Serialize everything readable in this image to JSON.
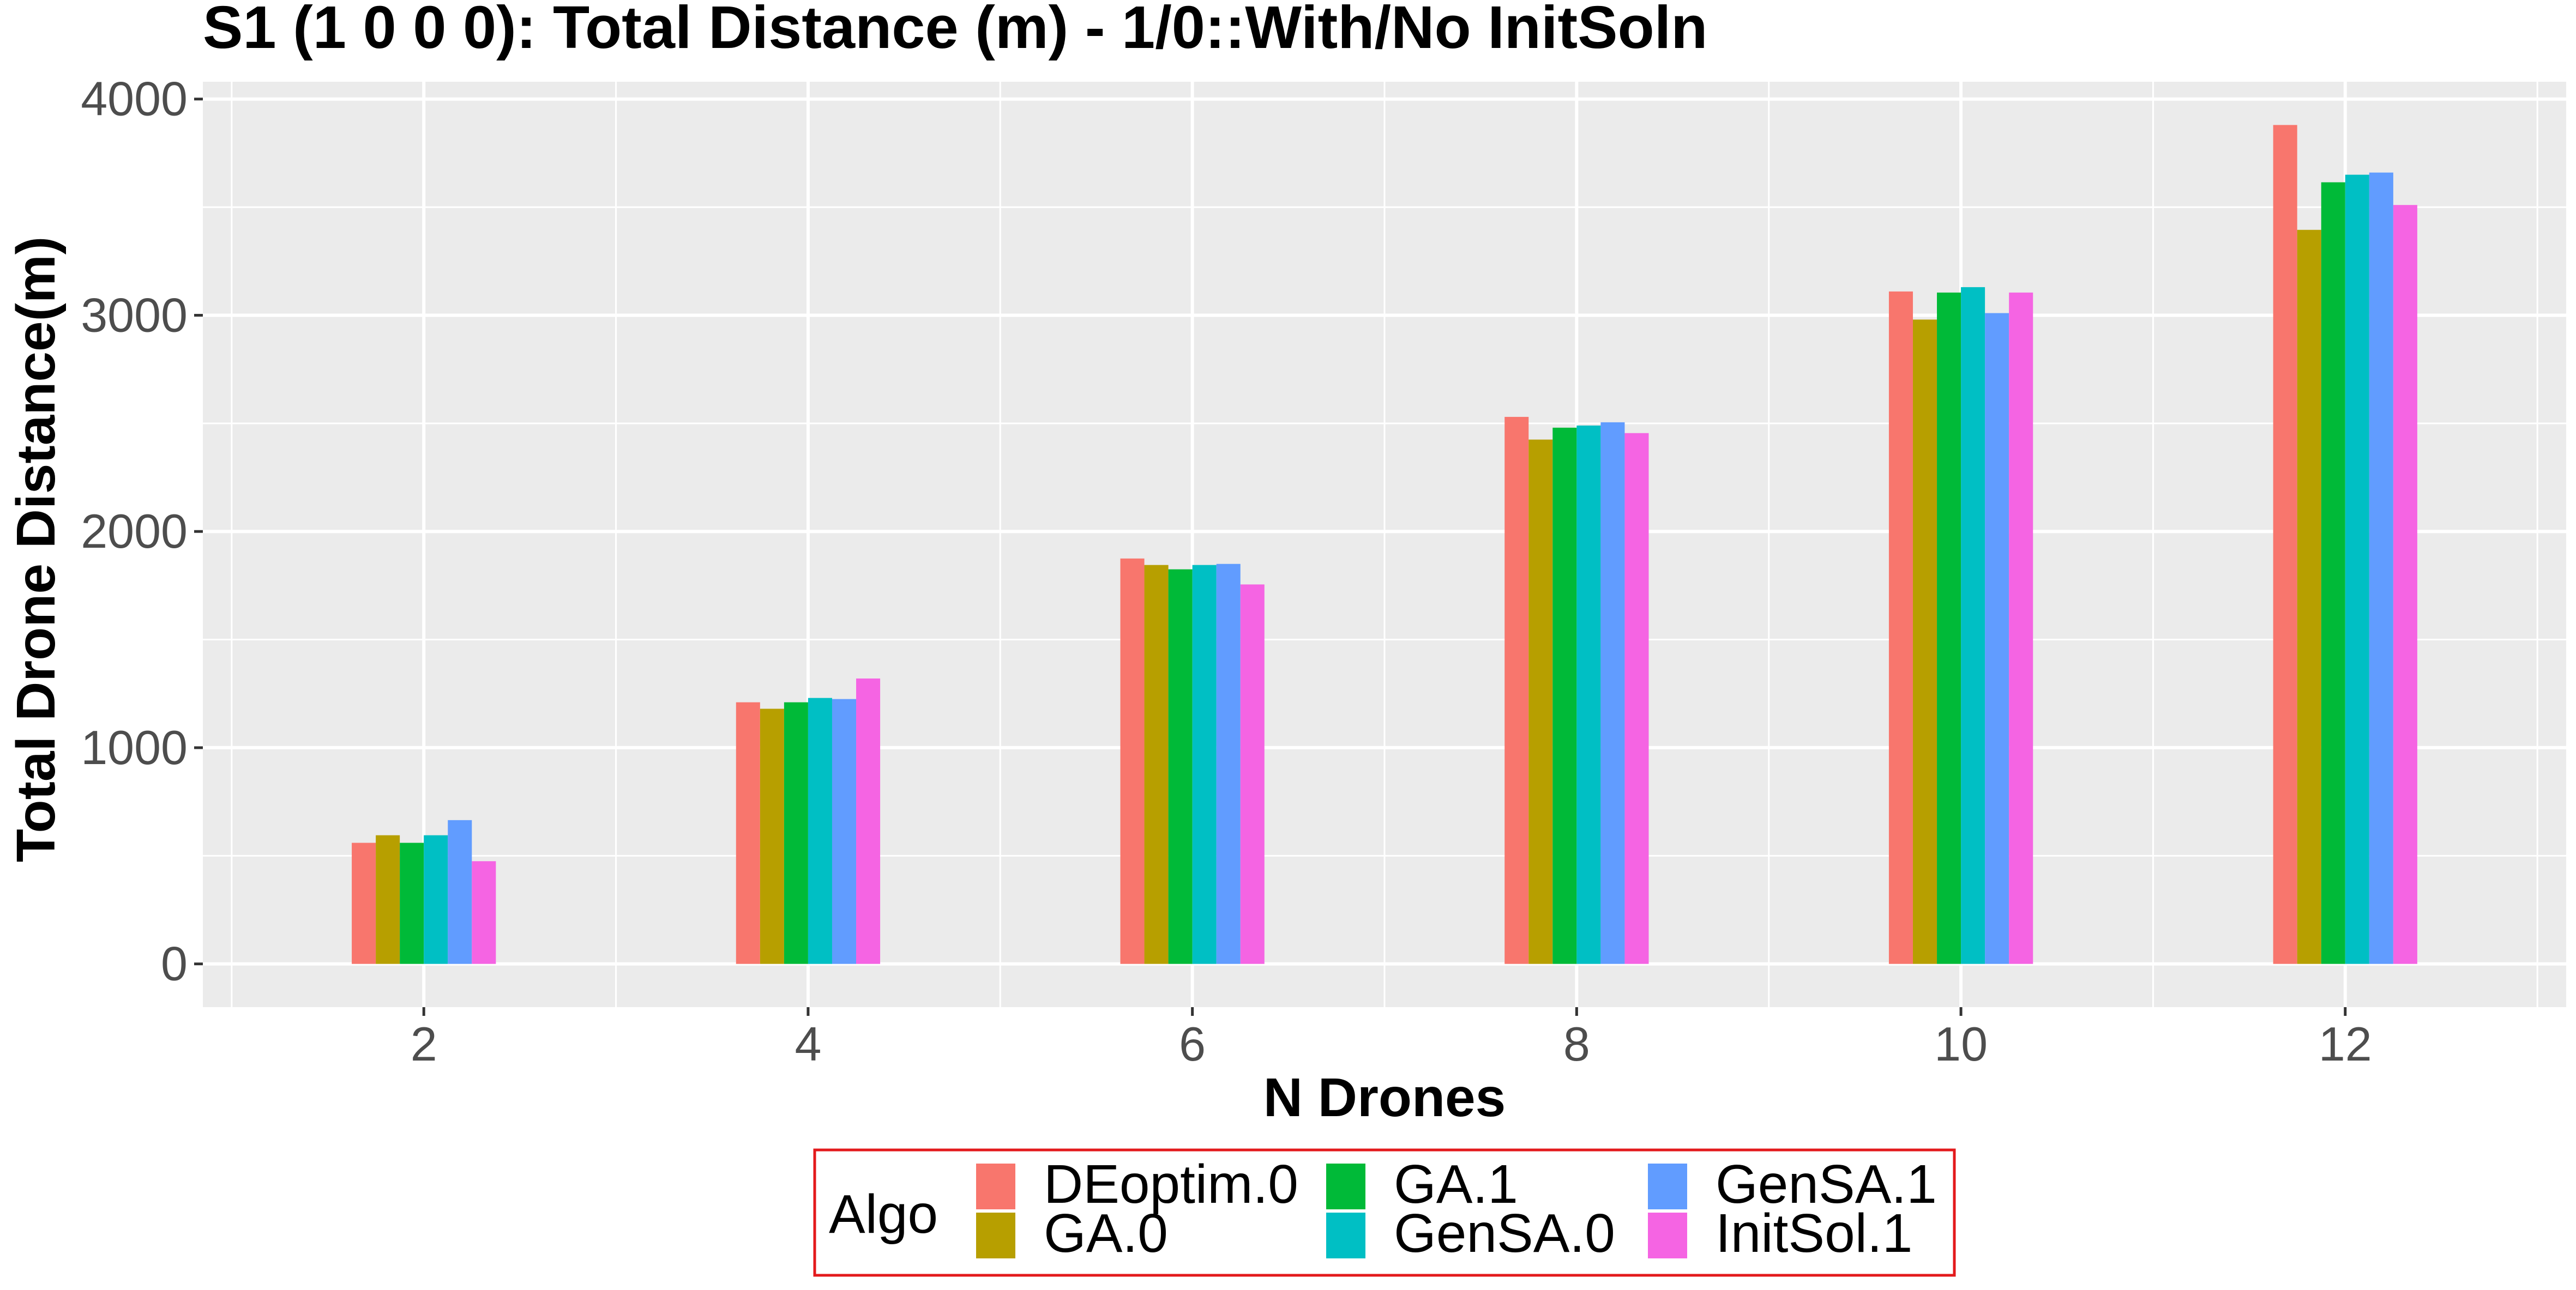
{
  "chart_data": {
    "type": "bar",
    "title": "S1 (1 0 0 0): Total Distance (m) - 1/0::With/No InitSoln",
    "xlabel": "N Drones",
    "ylabel": "Total Drone Distance(m)",
    "categories": [
      "2",
      "4",
      "6",
      "8",
      "10",
      "12"
    ],
    "x": [
      2,
      4,
      6,
      8,
      10,
      12
    ],
    "xlim": [
      0.85,
      13.15
    ],
    "ylim": [
      -200,
      4080
    ],
    "yticks": [
      "0",
      "1000",
      "2000",
      "3000",
      "4000"
    ],
    "xticks": [
      "2",
      "4",
      "6",
      "8",
      "10",
      "12"
    ],
    "grid": true,
    "legend": {
      "title": "Algo",
      "position": "bottom",
      "columns": 3
    },
    "series": [
      {
        "name": "DEoptim.0",
        "color": "#F8766D",
        "values": [
          560,
          1210,
          1875,
          2530,
          3110,
          3880
        ]
      },
      {
        "name": "GA.0",
        "color": "#B79F00",
        "values": [
          595,
          1180,
          1845,
          2425,
          2980,
          3395
        ]
      },
      {
        "name": "GA.1",
        "color": "#00BA38",
        "values": [
          560,
          1210,
          1825,
          2480,
          3105,
          3615
        ]
      },
      {
        "name": "GenSA.0",
        "color": "#00BFC4",
        "values": [
          595,
          1230,
          1845,
          2490,
          3130,
          3650
        ]
      },
      {
        "name": "GenSA.1",
        "color": "#619CFF",
        "values": [
          665,
          1225,
          1850,
          2505,
          3010,
          3660
        ]
      },
      {
        "name": "InitSol.1",
        "color": "#F564E3",
        "values": [
          475,
          1320,
          1755,
          2455,
          3105,
          3510
        ]
      }
    ]
  }
}
